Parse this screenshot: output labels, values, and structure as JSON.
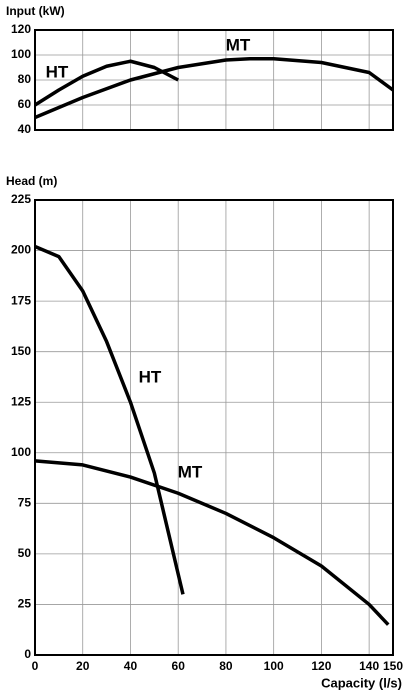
{
  "chart_data": [
    {
      "type": "line",
      "ylabel": "Input (kW)",
      "xlim": [
        0,
        150
      ],
      "ylim": [
        40,
        120
      ],
      "yticks": [
        40,
        60,
        80,
        100,
        120
      ],
      "grid": true,
      "series": [
        {
          "name": "HT",
          "color": "#000000",
          "x": [
            0,
            10,
            20,
            30,
            40,
            50,
            60
          ],
          "values": [
            60,
            72,
            83,
            91,
            95,
            90,
            80
          ]
        },
        {
          "name": "MT",
          "color": "#000000",
          "x": [
            0,
            20,
            40,
            60,
            80,
            90,
            100,
            120,
            140,
            150
          ],
          "values": [
            50,
            66,
            80,
            90,
            96,
            97,
            97,
            94,
            86,
            72
          ]
        }
      ]
    },
    {
      "type": "line",
      "ylabel": "Head (m)",
      "xlabel": "Capacity (l/s)",
      "xlim": [
        0,
        150
      ],
      "ylim": [
        0,
        225
      ],
      "xticks": [
        0,
        20,
        40,
        60,
        80,
        100,
        120,
        140,
        150
      ],
      "yticks": [
        0,
        25,
        50,
        75,
        100,
        125,
        150,
        175,
        200,
        225
      ],
      "grid": true,
      "series": [
        {
          "name": "HT",
          "color": "#000000",
          "x": [
            0,
            10,
            20,
            30,
            40,
            50,
            55,
            60,
            62
          ],
          "values": [
            202,
            197,
            180,
            155,
            125,
            90,
            65,
            40,
            30
          ]
        },
        {
          "name": "MT",
          "color": "#000000",
          "x": [
            0,
            20,
            40,
            60,
            80,
            100,
            120,
            140,
            148
          ],
          "values": [
            96,
            94,
            88,
            80,
            70,
            58,
            44,
            25,
            15
          ]
        }
      ]
    }
  ]
}
